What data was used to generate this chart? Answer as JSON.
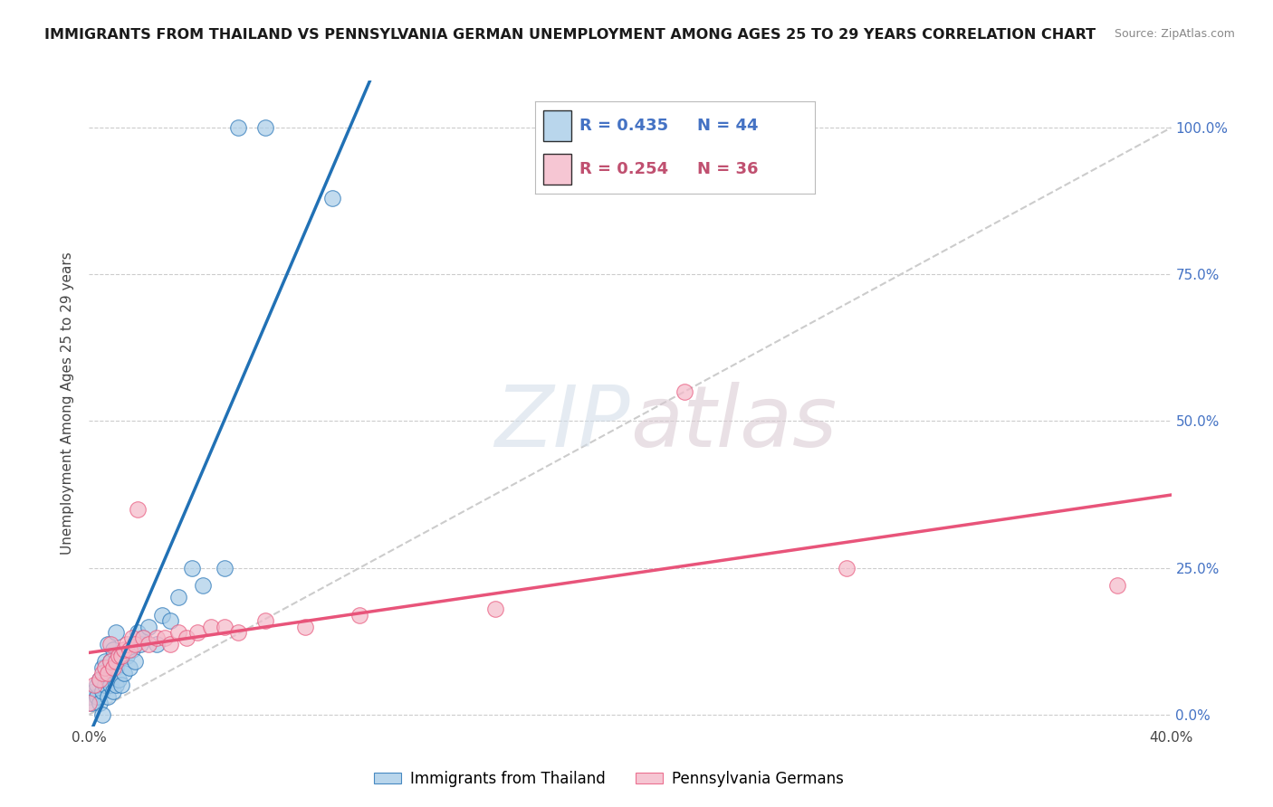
{
  "title": "IMMIGRANTS FROM THAILAND VS PENNSYLVANIA GERMAN UNEMPLOYMENT AMONG AGES 25 TO 29 YEARS CORRELATION CHART",
  "source": "Source: ZipAtlas.com",
  "ylabel": "Unemployment Among Ages 25 to 29 years",
  "ytick_labels": [
    "100.0%",
    "75.0%",
    "50.0%",
    "25.0%",
    "0.0%"
  ],
  "ytick_values": [
    1.0,
    0.75,
    0.5,
    0.25,
    0.0
  ],
  "xlim": [
    0,
    0.4
  ],
  "ylim": [
    -0.02,
    1.08
  ],
  "color_blue": "#a8cce8",
  "color_pink": "#f4b8c8",
  "color_blue_line": "#2171b5",
  "color_pink_line": "#e8547a",
  "color_diag": "#cccccc",
  "legend_label1": "Immigrants from Thailand",
  "legend_label2": "Pennsylvania Germans",
  "legend_r1": "0.435",
  "legend_n1": "44",
  "legend_r2": "0.254",
  "legend_n2": "36",
  "thailand_x": [
    0.0,
    0.001,
    0.002,
    0.003,
    0.003,
    0.004,
    0.004,
    0.005,
    0.005,
    0.005,
    0.006,
    0.006,
    0.007,
    0.007,
    0.007,
    0.008,
    0.008,
    0.009,
    0.009,
    0.01,
    0.01,
    0.01,
    0.011,
    0.012,
    0.012,
    0.013,
    0.014,
    0.015,
    0.016,
    0.017,
    0.018,
    0.019,
    0.02,
    0.022,
    0.025,
    0.027,
    0.03,
    0.033,
    0.038,
    0.042,
    0.05,
    0.055,
    0.065,
    0.09
  ],
  "thailand_y": [
    0.03,
    0.02,
    0.04,
    0.03,
    0.05,
    0.02,
    0.06,
    0.0,
    0.04,
    0.08,
    0.05,
    0.09,
    0.03,
    0.06,
    0.12,
    0.05,
    0.09,
    0.04,
    0.11,
    0.05,
    0.08,
    0.14,
    0.06,
    0.05,
    0.1,
    0.07,
    0.1,
    0.08,
    0.11,
    0.09,
    0.14,
    0.12,
    0.13,
    0.15,
    0.12,
    0.17,
    0.16,
    0.2,
    0.25,
    0.22,
    0.25,
    1.0,
    1.0,
    0.88
  ],
  "pagerman_x": [
    0.0,
    0.002,
    0.004,
    0.005,
    0.006,
    0.007,
    0.008,
    0.008,
    0.009,
    0.01,
    0.011,
    0.012,
    0.013,
    0.014,
    0.015,
    0.016,
    0.017,
    0.018,
    0.02,
    0.022,
    0.025,
    0.028,
    0.03,
    0.033,
    0.036,
    0.04,
    0.045,
    0.05,
    0.055,
    0.065,
    0.08,
    0.1,
    0.15,
    0.22,
    0.28,
    0.38
  ],
  "pagerman_y": [
    0.02,
    0.05,
    0.06,
    0.07,
    0.08,
    0.07,
    0.09,
    0.12,
    0.08,
    0.09,
    0.1,
    0.1,
    0.11,
    0.12,
    0.11,
    0.13,
    0.12,
    0.35,
    0.13,
    0.12,
    0.13,
    0.13,
    0.12,
    0.14,
    0.13,
    0.14,
    0.15,
    0.15,
    0.14,
    0.16,
    0.15,
    0.17,
    0.18,
    0.55,
    0.25,
    0.22
  ]
}
